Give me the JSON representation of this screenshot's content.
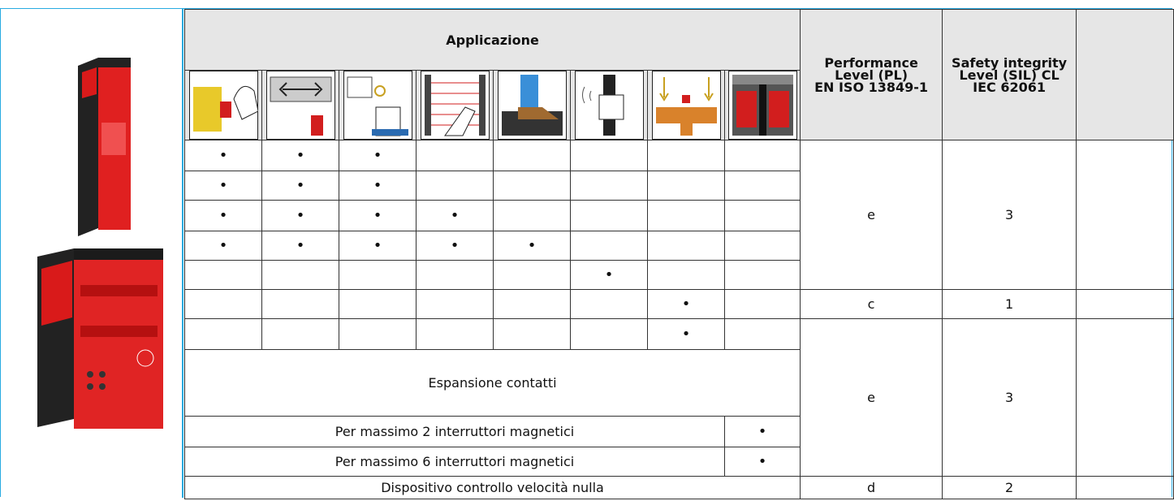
{
  "header": {
    "title": "Applicazione",
    "pl": [
      "Performance",
      "Level (PL)",
      "EN ISO 13849-1"
    ],
    "sil": [
      "Safety integrity",
      "Level (SIL) CL",
      "IEC 62061"
    ]
  },
  "groups": [
    {
      "pl": "e",
      "sil": "3",
      "rows": [
        {
          "cells": [
            "•",
            "•",
            "•",
            null,
            null,
            null,
            null,
            null
          ]
        },
        {
          "cells": [
            "•",
            "•",
            "•",
            null,
            null,
            null,
            null,
            null
          ]
        },
        {
          "cells": [
            "•",
            "•",
            "•",
            "•",
            null,
            null,
            null,
            null
          ]
        },
        {
          "cells": [
            "•",
            "•",
            "•",
            "•",
            "•",
            null,
            null,
            null
          ]
        },
        {
          "cells": [
            null,
            null,
            null,
            null,
            null,
            "•",
            null,
            null
          ]
        }
      ]
    },
    {
      "pl": "c",
      "sil": "1",
      "rows": [
        {
          "cells": [
            null,
            null,
            null,
            null,
            null,
            null,
            "•",
            null
          ]
        }
      ]
    },
    {
      "pl": "e",
      "sil": "3",
      "rows": [
        {
          "cells": [
            null,
            null,
            null,
            null,
            null,
            null,
            "•",
            null
          ]
        },
        {
          "label": "Espansione contatti"
        },
        {
          "label": "Per massimo 2 interruttori magnetici",
          "cells": [
            "•"
          ]
        },
        {
          "label": "Per massimo 6 interruttori magnetici",
          "cells": [
            "•"
          ]
        }
      ]
    },
    {
      "pl": "d",
      "sil": "2",
      "rows": [
        {
          "label": "Dispositivo controllo velocità nulla"
        }
      ]
    }
  ]
}
